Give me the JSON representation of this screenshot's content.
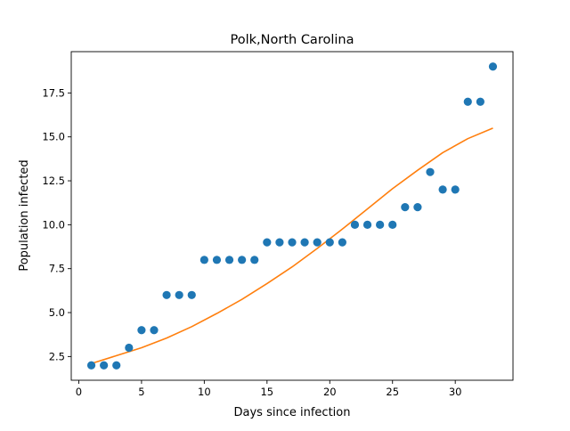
{
  "chart_data": {
    "type": "scatter",
    "title": "Polk,North Carolina",
    "xlabel": "Days since infection",
    "ylabel": "Population infected",
    "xlim": [
      -0.6,
      34.6
    ],
    "ylim": [
      1.15,
      19.85
    ],
    "x_ticks": [
      0,
      5,
      10,
      15,
      20,
      25,
      30
    ],
    "x_tick_labels": [
      "0",
      "5",
      "10",
      "15",
      "20",
      "25",
      "30"
    ],
    "y_ticks": [
      2.5,
      5.0,
      7.5,
      10.0,
      12.5,
      15.0,
      17.5
    ],
    "y_tick_labels": [
      "2.5",
      "5.0",
      "7.5",
      "10.0",
      "12.5",
      "15.0",
      "17.5"
    ],
    "grid": false,
    "legend": "none",
    "series": [
      {
        "type": "scatter",
        "color": "#1f77b4",
        "x": [
          1,
          2,
          3,
          4,
          5,
          6,
          7,
          8,
          9,
          10,
          11,
          12,
          13,
          14,
          15,
          16,
          17,
          18,
          19,
          20,
          21,
          22,
          23,
          24,
          25,
          26,
          27,
          28,
          29,
          30,
          31,
          32,
          33
        ],
        "y": [
          2,
          2,
          2,
          3,
          4,
          4,
          6,
          6,
          6,
          8,
          8,
          8,
          8,
          8,
          9,
          9,
          9,
          9,
          9,
          9,
          9,
          10,
          10,
          10,
          10,
          11,
          11,
          13,
          12,
          12,
          17,
          17,
          19
        ]
      },
      {
        "type": "line",
        "color": "#ff7f0e",
        "x": [
          1,
          3,
          5,
          7,
          9,
          11,
          13,
          15,
          17,
          19,
          21,
          23,
          25,
          27,
          29,
          31,
          33
        ],
        "y": [
          2.1,
          2.55,
          3.0,
          3.55,
          4.2,
          4.95,
          5.75,
          6.65,
          7.6,
          8.65,
          9.75,
          10.9,
          12.05,
          13.1,
          14.1,
          14.9,
          15.5
        ]
      }
    ]
  }
}
